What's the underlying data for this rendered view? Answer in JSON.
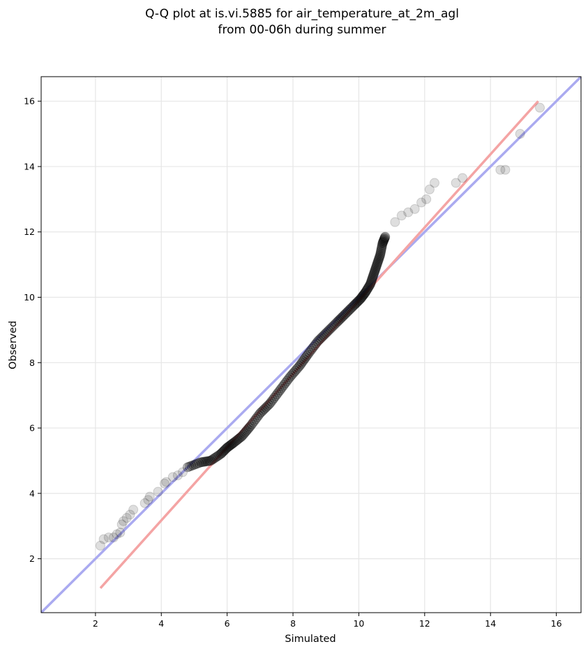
{
  "chart_data": {
    "type": "scatter",
    "title": [
      "Q-Q plot at is.vi.5885 for air_temperature_at_2m_agl",
      "from 00-06h during summer"
    ],
    "xlabel": "Simulated",
    "ylabel": "Observed",
    "xlim": [
      0.35,
      16.75
    ],
    "ylim": [
      0.35,
      16.75
    ],
    "xticks": [
      2,
      4,
      6,
      8,
      10,
      12,
      14,
      16
    ],
    "yticks": [
      2,
      4,
      6,
      8,
      10,
      12,
      14,
      16
    ],
    "grid": true,
    "reference_lines": [
      {
        "name": "1:1 line",
        "color": "#aaaaf0",
        "points": [
          [
            0.35,
            0.35
          ],
          [
            16.75,
            16.75
          ]
        ]
      },
      {
        "name": "fit line",
        "color": "#f4a4a4",
        "points": [
          [
            2.15,
            1.1
          ],
          [
            15.45,
            16.0
          ]
        ]
      }
    ],
    "points": {
      "color": "#000000",
      "tail_quantiles": [
        [
          2.15,
          2.4
        ],
        [
          2.25,
          2.6
        ],
        [
          2.4,
          2.65
        ],
        [
          2.55,
          2.65
        ],
        [
          2.65,
          2.75
        ],
        [
          2.75,
          2.8
        ],
        [
          2.8,
          3.05
        ],
        [
          2.85,
          3.15
        ],
        [
          2.95,
          3.25
        ],
        [
          3.05,
          3.35
        ],
        [
          3.15,
          3.5
        ],
        [
          3.5,
          3.7
        ],
        [
          3.6,
          3.8
        ],
        [
          3.65,
          3.9
        ],
        [
          3.9,
          4.05
        ],
        [
          4.1,
          4.3
        ],
        [
          4.15,
          4.35
        ],
        [
          4.35,
          4.5
        ],
        [
          4.5,
          4.55
        ],
        [
          4.65,
          4.65
        ],
        [
          11.1,
          12.3
        ],
        [
          11.3,
          12.5
        ],
        [
          11.5,
          12.6
        ],
        [
          11.7,
          12.7
        ],
        [
          11.9,
          12.9
        ],
        [
          12.05,
          13.0
        ],
        [
          12.15,
          13.3
        ],
        [
          12.3,
          13.5
        ],
        [
          12.95,
          13.5
        ],
        [
          13.15,
          13.65
        ],
        [
          14.3,
          13.9
        ],
        [
          14.45,
          13.9
        ],
        [
          14.9,
          15.0
        ],
        [
          15.5,
          15.8
        ]
      ],
      "body_quantiles": [
        [
          4.8,
          4.8
        ],
        [
          5.2,
          4.95
        ],
        [
          5.5,
          5.0
        ],
        [
          5.8,
          5.2
        ],
        [
          6.0,
          5.4
        ],
        [
          6.2,
          5.55
        ],
        [
          6.45,
          5.75
        ],
        [
          6.7,
          6.05
        ],
        [
          7.0,
          6.45
        ],
        [
          7.3,
          6.75
        ],
        [
          7.6,
          7.15
        ],
        [
          7.9,
          7.55
        ],
        [
          8.2,
          7.9
        ],
        [
          8.45,
          8.25
        ],
        [
          8.75,
          8.65
        ],
        [
          9.05,
          8.95
        ],
        [
          9.35,
          9.25
        ],
        [
          9.6,
          9.5
        ],
        [
          9.85,
          9.75
        ],
        [
          10.05,
          9.95
        ],
        [
          10.2,
          10.15
        ],
        [
          10.35,
          10.4
        ],
        [
          10.45,
          10.7
        ],
        [
          10.55,
          11.0
        ],
        [
          10.65,
          11.3
        ],
        [
          10.72,
          11.65
        ],
        [
          10.8,
          11.85
        ]
      ]
    }
  }
}
